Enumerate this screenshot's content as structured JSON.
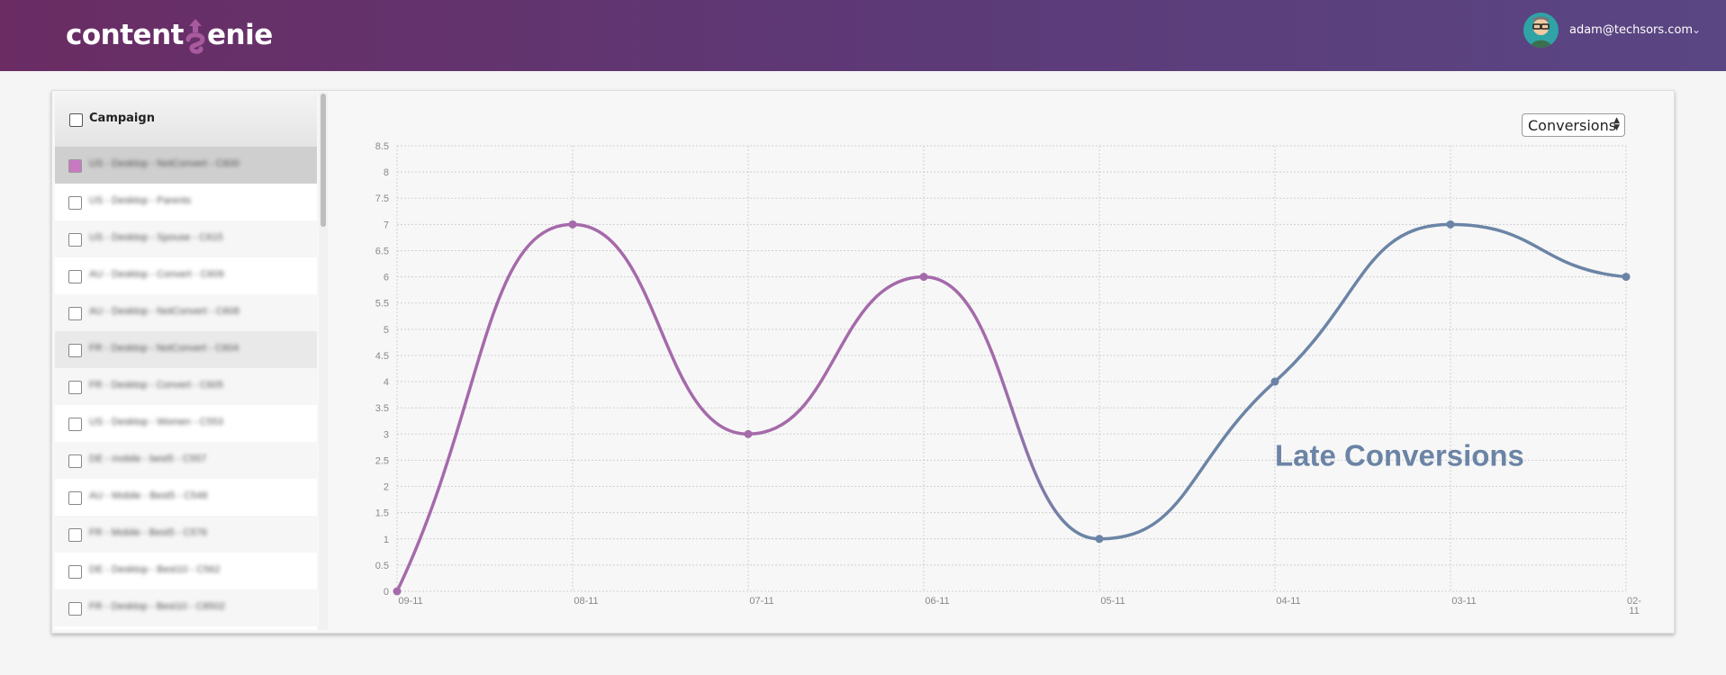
{
  "header": {
    "logo_left": "content",
    "logo_right": "enie",
    "user_email": "adam@techsors.com",
    "caret": "⌄"
  },
  "sidebar": {
    "header_label": "Campaign",
    "rows": [
      {
        "label": "US - Desktop - NotConvert - C600",
        "checked": true
      },
      {
        "label": "US - Desktop - Parents",
        "checked": false
      },
      {
        "label": "US - Desktop - Spouse - C615",
        "checked": false
      },
      {
        "label": "AU - Desktop - Convert - C609",
        "checked": false
      },
      {
        "label": "AU - Desktop - NotConvert - C608",
        "checked": false
      },
      {
        "label": "FR - Desktop - NotConvert - C604",
        "checked": false
      },
      {
        "label": "FR - Desktop - Convert - C605",
        "checked": false
      },
      {
        "label": "US - Desktop - Women - C553",
        "checked": false
      },
      {
        "label": "DE - mobile - best5 - C557",
        "checked": false
      },
      {
        "label": "AU - Mobile - Best5 - C548",
        "checked": false
      },
      {
        "label": "FR - Mobile - Best5 - C576",
        "checked": false
      },
      {
        "label": "DE - Desktop - Best10 - C562",
        "checked": false
      },
      {
        "label": "FR - Desktop - Best10 - C8502",
        "checked": false
      }
    ]
  },
  "metric_select": {
    "value": "Conversions"
  },
  "colors": {
    "series_purple": "#a56aaa",
    "series_blue": "#6b84a6"
  },
  "chart_data": {
    "type": "line",
    "categories": [
      "09-11",
      "08-11",
      "07-11",
      "06-11",
      "05-11",
      "04-11",
      "03-11",
      "02-11"
    ],
    "values": [
      0,
      7,
      3,
      6,
      1,
      4,
      7,
      6
    ],
    "ylim": [
      0,
      8.5
    ],
    "yticks": [
      "0",
      "0.5",
      "1",
      "1.5",
      "2",
      "2.5",
      "3",
      "3.5",
      "4",
      "4.5",
      "5",
      "5.5",
      "6",
      "6.5",
      "7",
      "7.5",
      "8",
      "8.5"
    ],
    "grid": true,
    "annotation": "Late Conversions",
    "color_split_after_category": "06-11"
  }
}
